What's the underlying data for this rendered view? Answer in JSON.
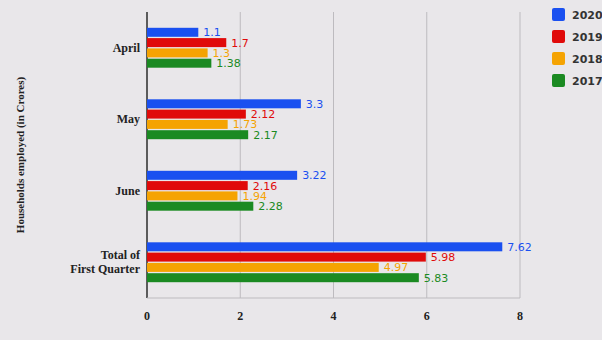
{
  "chart_data": {
    "type": "bar",
    "orientation": "horizontal",
    "y_label": "Households employed (in Crores)",
    "categories": [
      "April",
      "May",
      "June",
      "Total of First Quarter"
    ],
    "series": [
      {
        "name": "2020",
        "color": "#1a50f0",
        "values": [
          1.1,
          3.3,
          3.22,
          7.62
        ]
      },
      {
        "name": "2019",
        "color": "#e00a0a",
        "values": [
          1.7,
          2.12,
          2.16,
          5.98
        ]
      },
      {
        "name": "2018",
        "color": "#f5a302",
        "values": [
          1.3,
          1.73,
          1.94,
          4.97
        ]
      },
      {
        "name": "2017",
        "color": "#1b8a22",
        "values": [
          1.38,
          2.17,
          2.28,
          5.83
        ]
      }
    ],
    "xlim": [
      0,
      8
    ],
    "xticks": [
      0,
      2,
      4,
      6,
      8
    ],
    "grid": true,
    "data_labels": true,
    "legend": "top-right"
  }
}
